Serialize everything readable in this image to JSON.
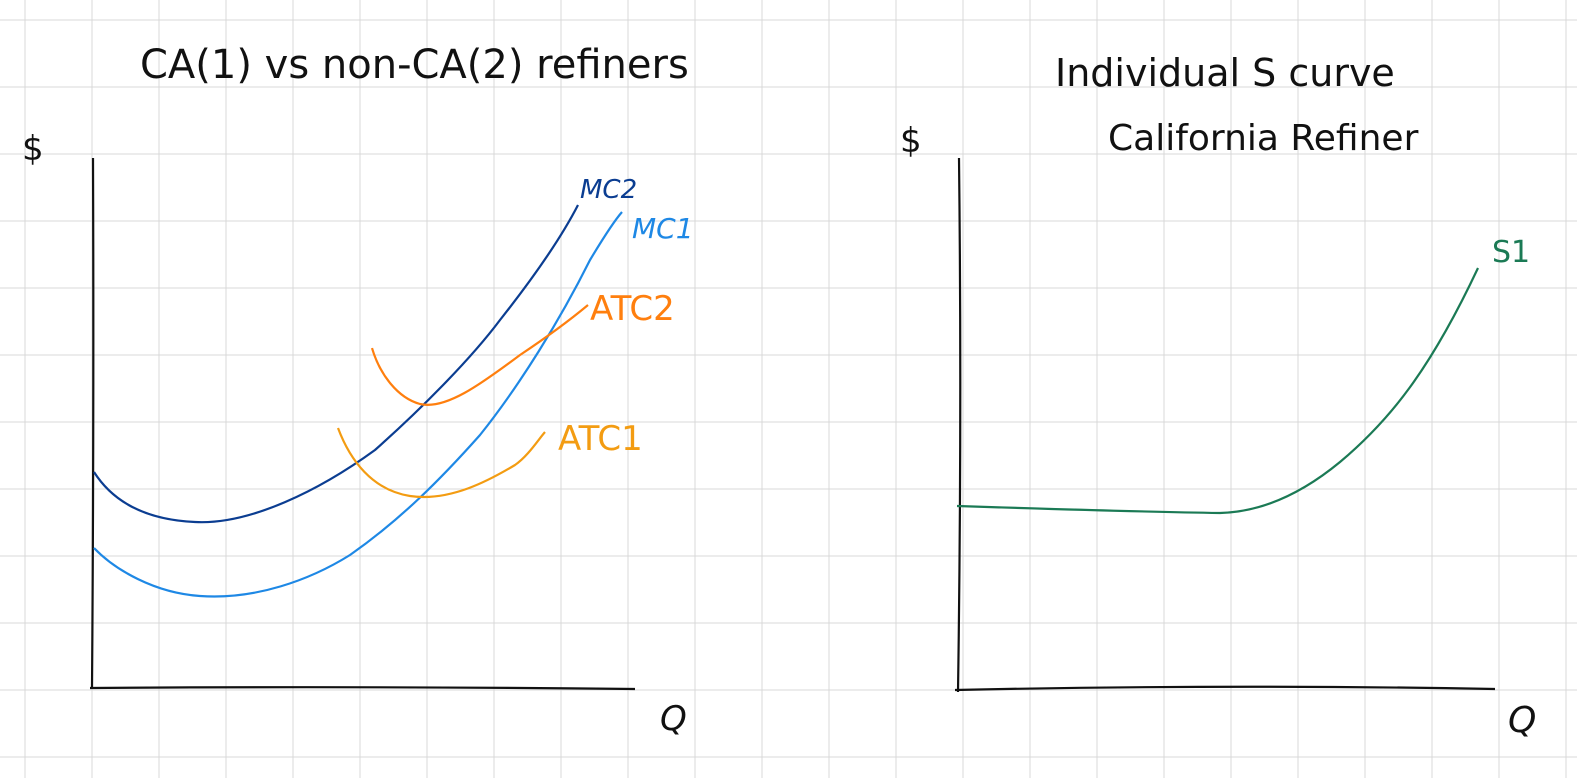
{
  "left_graph": {
    "title": "CA(1) vs non-CA(2) refiners",
    "y_axis_label": "$",
    "x_axis_label": "Q",
    "curves": [
      {
        "label": "MC2",
        "color": "#0b3d91"
      },
      {
        "label": "MC1",
        "color": "#1e88e5"
      },
      {
        "label": "ATC2",
        "color": "#ff7f0e"
      },
      {
        "label": "ATC1",
        "color": "#f39c12"
      }
    ]
  },
  "right_graph": {
    "title_line1": "Individual S curve",
    "title_line2": "California Refiner",
    "y_axis_label": "$",
    "x_axis_label": "Q",
    "curves": [
      {
        "label": "S1",
        "color": "#1b7a55"
      }
    ]
  },
  "colors": {
    "grid": "#d9d9d9",
    "axis": "#111111"
  }
}
